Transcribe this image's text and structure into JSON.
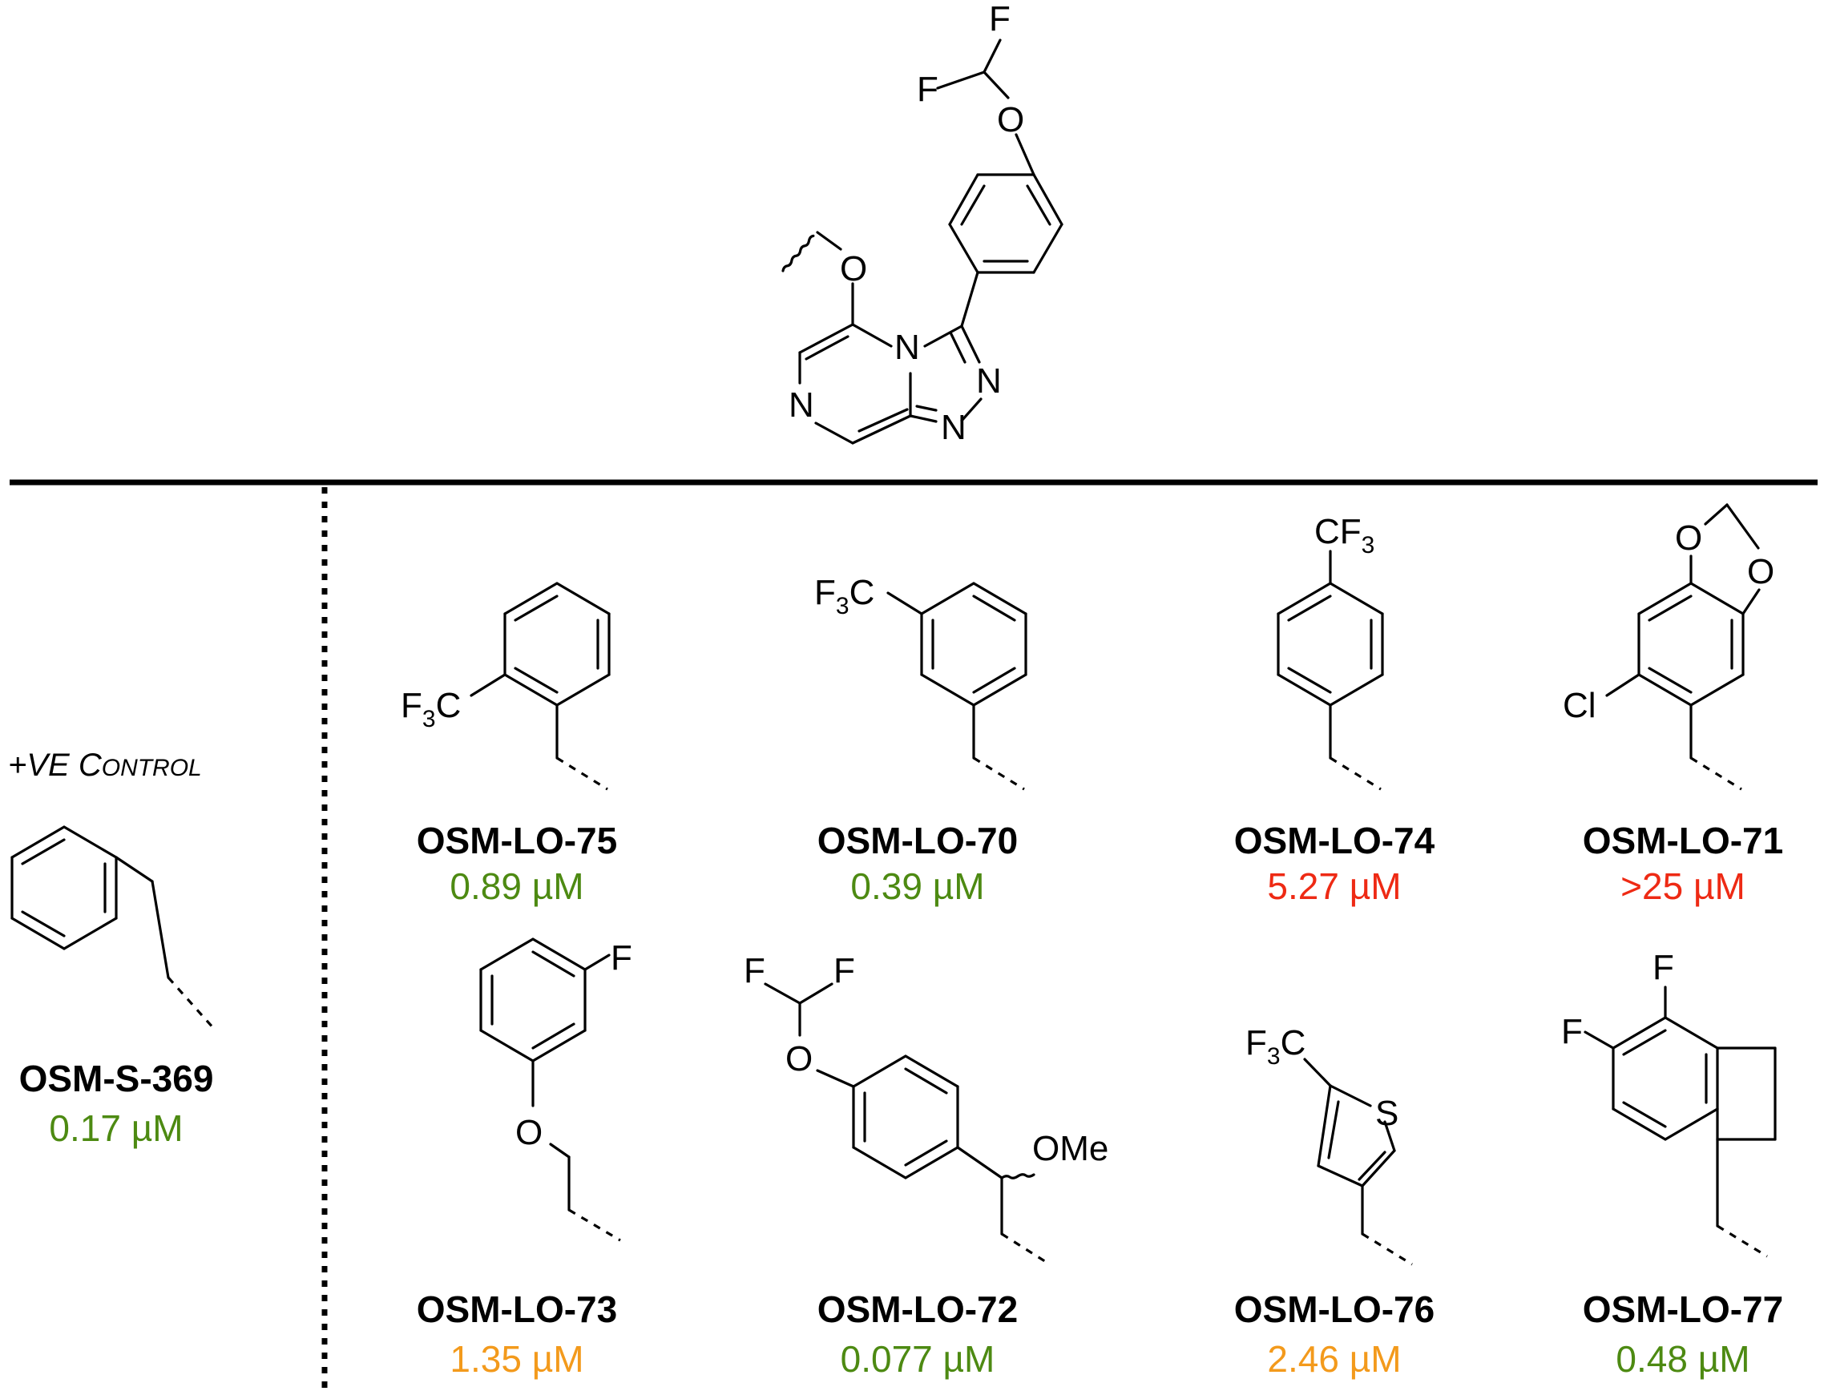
{
  "colors": {
    "green": "#4d8a12",
    "orange": "#f39a1c",
    "red": "#ee2a14"
  },
  "control": {
    "label_plus": "+",
    "label_ve": "VE ",
    "label_c": "C",
    "label_ontrol": "ONTROL",
    "name": "OSM-S-369",
    "value": "0.17 µM",
    "value_color": "green"
  },
  "atoms": {
    "F": "F",
    "O": "O",
    "N": "N",
    "S": "S",
    "Cl": "Cl",
    "C": "C",
    "three": "3",
    "CF": "CF",
    "OMe": "OMe"
  },
  "compounds": [
    {
      "name": "OSM-LO-75",
      "value": "0.89 µM",
      "value_color": "green"
    },
    {
      "name": "OSM-LO-70",
      "value": "0.39 µM",
      "value_color": "green"
    },
    {
      "name": "OSM-LO-74",
      "value": "5.27 µM",
      "value_color": "red"
    },
    {
      "name": "OSM-LO-71",
      "value": ">25 µM",
      "value_color": "red"
    },
    {
      "name": "OSM-LO-73",
      "value": "1.35 µM",
      "value_color": "orange"
    },
    {
      "name": "OSM-LO-72",
      "value": "0.077 µM",
      "value_color": "green"
    },
    {
      "name": "OSM-LO-76",
      "value": "2.46 µM",
      "value_color": "orange"
    },
    {
      "name": "OSM-LO-77",
      "value": "0.48 µM",
      "value_color": "green"
    }
  ]
}
